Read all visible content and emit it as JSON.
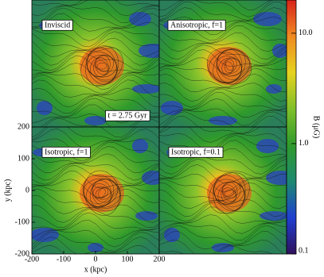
{
  "chart_data": {
    "type": "heatmap",
    "panels": [
      "Inviscid",
      "Anisotropic, f=1",
      "Isotropic, f=1",
      "Isotropic, f=0.1"
    ],
    "annotation": "t = 2.75 Gyr",
    "xlabel": "x (kpc)",
    "ylabel": "y (kpc)",
    "xlim": [
      -200,
      200
    ],
    "ylim": [
      -200,
      200
    ],
    "xticks": [
      -200,
      -100,
      0,
      100,
      200
    ],
    "yticks": [
      -200,
      -100,
      0,
      100,
      200
    ],
    "colorbar": {
      "label": "B (μG)",
      "lim": [
        0.1,
        20
      ],
      "log": true,
      "ticks": [
        {
          "value": 10,
          "label": "10.0"
        },
        {
          "value": 1,
          "label": "1.0"
        },
        0.1
      ],
      "colormap": [
        "#30105c",
        "#1f3fd0",
        "#1c8a70",
        "#2f9a2c",
        "#7fc02a",
        "#e6d21e",
        "#f08a22",
        "#d8241a"
      ]
    }
  }
}
